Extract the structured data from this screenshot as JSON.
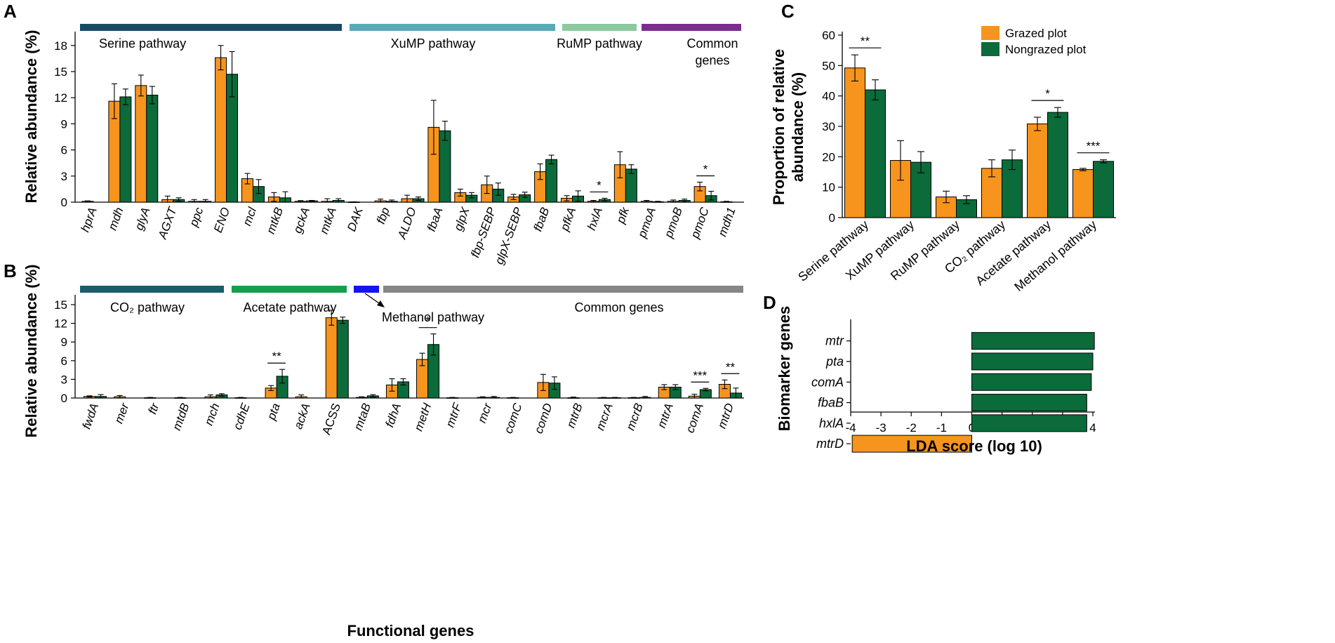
{
  "colors": {
    "grazed": "#F7941D",
    "nongrazed": "#0B6B3A"
  },
  "panelA": {
    "label": "A",
    "ylabel": "Relative abundance (%)",
    "ylim": [
      0,
      20
    ],
    "ticks": [
      "0",
      "3",
      "6",
      "9",
      "12",
      "15",
      "18"
    ],
    "groups": [
      {
        "name": "Serine pathway",
        "line2": "",
        "color": "#1A4A63",
        "from": 0,
        "to": 9
      },
      {
        "name": "XuMP pathway",
        "line2": "",
        "color": "#5AAAB8",
        "from": 10,
        "to": 16
      },
      {
        "name": "RuMP pathway",
        "line2": "",
        "color": "#8CC9A0",
        "from": 17,
        "to": 18
      },
      {
        "name": "Common",
        "line2": "genes",
        "color": "#7B2E8E",
        "from": 19,
        "to": 22
      }
    ]
  },
  "panelB": {
    "label": "B",
    "ylabel": "Relative abundance (%)",
    "xlabel": "Functional genes",
    "ylim": [
      0,
      15
    ],
    "ticks": [
      "0",
      "3",
      "6",
      "9",
      "12",
      "15"
    ],
    "groups": [
      {
        "name": "CO₂ pathway",
        "color": "#1B5E6A",
        "from": 0,
        "to": 5
      },
      {
        "name": "Acetate pathway",
        "color": "#16A04E",
        "from": 6,
        "to": 8
      },
      {
        "name": "Methanol pathway",
        "color": "#1414EE",
        "from": 9,
        "to": 9
      },
      {
        "name": "Common genes",
        "color": "#868686",
        "from": 10,
        "to": 22
      }
    ]
  },
  "panelC": {
    "label": "C",
    "ylabel_line1": "Proportion of relative",
    "ylabel_line2": "abundance (%)",
    "ylim": [
      0,
      60
    ],
    "ticks": [
      "0",
      "10",
      "20",
      "30",
      "40",
      "50",
      "60"
    ],
    "legend": [
      "Grazed plot",
      "Nongrazed plot"
    ]
  },
  "panelD": {
    "label": "D",
    "ylabel": "Biomarker genes",
    "xlabel": "LDA score (log 10)",
    "xlim": [
      -4,
      4
    ],
    "ticks": [
      "-4",
      "-3",
      "-2",
      "-1",
      "0",
      "1",
      "2",
      "3",
      "4"
    ]
  },
  "chart_data": [
    {
      "type": "bar",
      "panel": "A",
      "title": "",
      "ylabel": "Relative abundance (%)",
      "ylim": [
        0,
        20
      ],
      "categories": [
        "hprA",
        "mdh",
        "glyA",
        "AGXT",
        "ppc",
        "ENO",
        "mcl",
        "mtkB",
        "gckA",
        "mtkA",
        "DAK",
        "fbp",
        "ALDO",
        "fbaA",
        "glpX",
        "fbp-SEBP",
        "glpX-SEBP",
        "fbaB",
        "pfkA",
        "hxlA",
        "pfk",
        "pmoA",
        "pmoB",
        "pmoC",
        "mdh1"
      ],
      "series": [
        {
          "name": "Grazed plot",
          "values": [
            0.1,
            11.6,
            13.4,
            0.3,
            0.1,
            16.6,
            2.7,
            0.6,
            0.1,
            0.1,
            0.02,
            0.15,
            0.4,
            8.6,
            1.1,
            2.0,
            0.6,
            3.5,
            0.45,
            0.1,
            4.3,
            0.1,
            0.1,
            1.8,
            0.05
          ],
          "errors": [
            0.05,
            2.0,
            1.2,
            0.4,
            0.2,
            1.4,
            0.6,
            0.5,
            0.08,
            0.3,
            0.02,
            0.2,
            0.4,
            3.1,
            0.4,
            1.0,
            0.3,
            0.9,
            0.3,
            0.1,
            1.5,
            0.1,
            0.15,
            0.5,
            0.05
          ]
        },
        {
          "name": "Nongrazed plot",
          "values": [
            null,
            12.1,
            12.3,
            0.3,
            0.1,
            14.7,
            1.8,
            0.5,
            0.15,
            0.2,
            null,
            0.1,
            0.4,
            8.2,
            0.8,
            1.5,
            0.85,
            4.9,
            0.7,
            0.3,
            3.8,
            0.05,
            0.2,
            0.75,
            null
          ],
          "errors": [
            0,
            0.9,
            1.0,
            0.2,
            0.2,
            2.6,
            0.8,
            0.7,
            0.05,
            0.2,
            0,
            0.15,
            0.2,
            1.1,
            0.3,
            0.7,
            0.3,
            0.5,
            0.6,
            0.15,
            0.5,
            0.05,
            0.15,
            0.5,
            0
          ]
        }
      ],
      "annotations": [
        {
          "category": "hxlA",
          "text": "*"
        },
        {
          "category": "pmoC",
          "text": "*"
        }
      ]
    },
    {
      "type": "bar",
      "panel": "B",
      "title": "",
      "xlabel": "Functional genes",
      "ylabel": "Relative abundance (%)",
      "ylim": [
        0,
        15
      ],
      "categories": [
        "fwdA",
        "mer",
        "ftr",
        "mtdB",
        "mch",
        "cdhE",
        "pta",
        "ackA",
        "ACSS",
        "mtaB",
        "fdhA",
        "metH",
        "mtrF",
        "mcr",
        "comC",
        "comD",
        "mtrB",
        "mcrA",
        "mcrB",
        "mtrA",
        "comA",
        "mtrD"
      ],
      "series": [
        {
          "name": "Grazed plot",
          "values": [
            0.25,
            0.2,
            0.05,
            0.05,
            0.2,
            0.05,
            1.6,
            0.2,
            12.9,
            0.1,
            2.1,
            6.2,
            0.05,
            0.1,
            0.05,
            2.5,
            0.05,
            0.05,
            0.05,
            1.75,
            0.3,
            2.2
          ],
          "errors": [
            0.1,
            0.2,
            0.05,
            0.05,
            0.3,
            0.05,
            0.4,
            0.3,
            1.2,
            0.1,
            1.0,
            1.0,
            0.05,
            0.1,
            0.05,
            1.3,
            0.1,
            0.05,
            0.05,
            0.4,
            0.3,
            0.7
          ]
        },
        {
          "name": "Nongrazed plot",
          "values": [
            0.25,
            null,
            null,
            null,
            0.5,
            null,
            3.5,
            null,
            12.5,
            0.35,
            2.6,
            8.6,
            null,
            0.1,
            null,
            2.4,
            null,
            0.05,
            0.1,
            1.75,
            1.35,
            0.8
          ],
          "errors": [
            0.3,
            0,
            0,
            0,
            0.2,
            0,
            1.1,
            0,
            0.5,
            0.2,
            0.5,
            1.7,
            0,
            0.15,
            0,
            1.0,
            0,
            0.05,
            0.15,
            0.4,
            0.2,
            0.8
          ]
        }
      ],
      "annotations": [
        {
          "category": "pta",
          "text": "**"
        },
        {
          "category": "metH",
          "text": "*"
        },
        {
          "category": "comA",
          "text": "***"
        },
        {
          "category": "mtrD",
          "text": "**"
        }
      ]
    },
    {
      "type": "bar",
      "panel": "C",
      "title": "",
      "ylabel": "Proportion of relative abundance (%)",
      "ylim": [
        0,
        60
      ],
      "categories": [
        "Serine pathway",
        "XuMP pathway",
        "RuMP pathway",
        "CO₂ pathway",
        "Acetate pathway",
        "Methanol pathway"
      ],
      "series": [
        {
          "name": "Grazed plot",
          "values": [
            49.2,
            18.8,
            6.8,
            16.2,
            30.8,
            15.8
          ],
          "errors": [
            4.3,
            6.5,
            1.9,
            2.8,
            2.2,
            0.4
          ]
        },
        {
          "name": "Nongrazed plot",
          "values": [
            42.0,
            18.2,
            5.9,
            19.0,
            34.6,
            18.5
          ],
          "errors": [
            3.3,
            3.5,
            1.3,
            3.2,
            1.6,
            0.5
          ]
        }
      ],
      "annotations": [
        {
          "category": "Serine pathway",
          "text": "**"
        },
        {
          "category": "Acetate pathway",
          "text": "*"
        },
        {
          "category": "Methanol pathway",
          "text": "***"
        }
      ],
      "legend": "top-right"
    },
    {
      "type": "bar",
      "orientation": "horizontal",
      "panel": "D",
      "title": "",
      "xlabel": "LDA score (log 10)",
      "ylabel": "Biomarker genes",
      "xlim": [
        -4,
        4
      ],
      "categories": [
        "mtr",
        "pta",
        "comA",
        "fbaB",
        "hxlA",
        "mtrD"
      ],
      "values": [
        4.05,
        4.0,
        3.95,
        3.8,
        3.8,
        -3.95
      ],
      "colors": [
        "#0B6B3A",
        "#0B6B3A",
        "#0B6B3A",
        "#0B6B3A",
        "#0B6B3A",
        "#F7941D"
      ]
    }
  ]
}
